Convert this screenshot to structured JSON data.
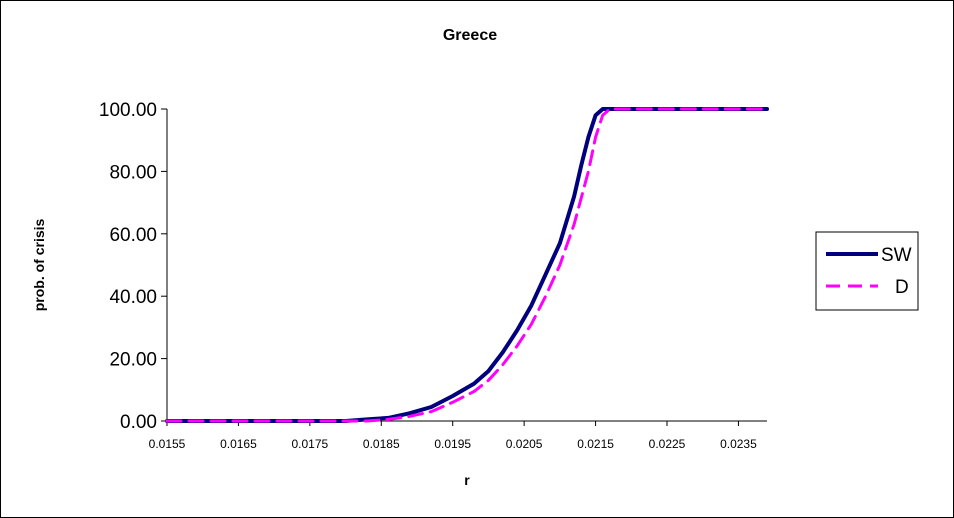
{
  "chart_data": {
    "type": "line",
    "title": "Greece",
    "xlabel": "r",
    "ylabel": "prob. of crisis",
    "xlim": [
      0.0155,
      0.0239
    ],
    "ylim": [
      0,
      100
    ],
    "x_ticks": [
      "0.0155",
      "0.0165",
      "0.0175",
      "0.0185",
      "0.0195",
      "0.0205",
      "0.0215",
      "0.0225",
      "0.0235"
    ],
    "y_ticks": [
      "0.00",
      "20.00",
      "40.00",
      "60.00",
      "80.00",
      "100.00"
    ],
    "grid": false,
    "legend_position": "right",
    "series": [
      {
        "name": "SW",
        "color": "#00007F",
        "style": "solid",
        "x": [
          0.0155,
          0.018,
          0.0183,
          0.0186,
          0.0189,
          0.0192,
          0.0195,
          0.0198,
          0.02,
          0.0202,
          0.0204,
          0.0206,
          0.0208,
          0.021,
          0.0212,
          0.0213,
          0.0214,
          0.0215,
          0.0216,
          0.0217,
          0.0239
        ],
        "y": [
          0,
          0,
          0.5,
          1.0,
          2.5,
          4.5,
          8.0,
          12.0,
          16.0,
          22.0,
          29.0,
          37.0,
          47.0,
          57.0,
          72.0,
          82.0,
          91.0,
          98.0,
          100,
          100,
          100
        ]
      },
      {
        "name": "D",
        "color": "#FF00FF",
        "style": "dashed",
        "x": [
          0.0155,
          0.0183,
          0.0186,
          0.0189,
          0.0192,
          0.0195,
          0.0198,
          0.02,
          0.0202,
          0.0204,
          0.0206,
          0.0208,
          0.021,
          0.0212,
          0.0214,
          0.0215,
          0.0216,
          0.0217,
          0.0239
        ],
        "y": [
          0,
          0,
          0.5,
          1.5,
          3.0,
          6.0,
          9.5,
          13.0,
          18.0,
          24.0,
          31.0,
          40.0,
          50.0,
          63.0,
          80.0,
          91.0,
          98.0,
          100,
          100
        ]
      }
    ]
  }
}
